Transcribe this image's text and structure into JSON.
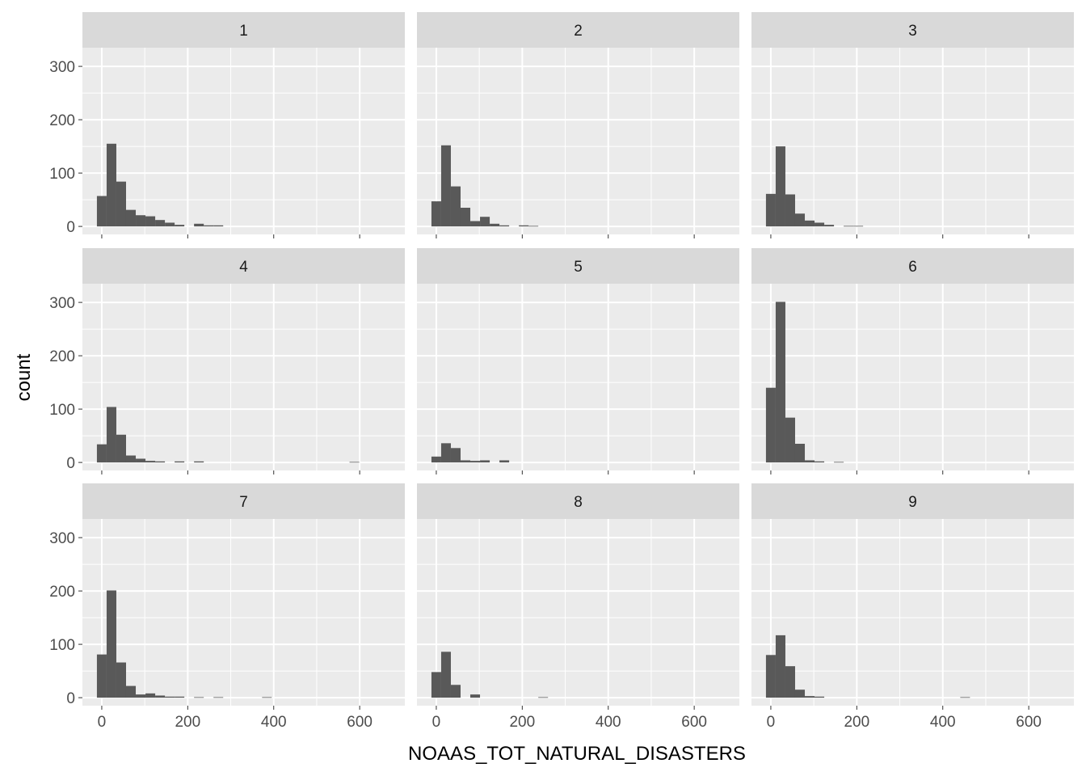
{
  "chart_data": {
    "type": "bar",
    "subtype": "faceted-histogram",
    "xlabel": "NOAAS_TOT_NATURAL_DISASTERS",
    "ylabel": "count",
    "xlim": [
      -45,
      705
    ],
    "ylim": [
      -15,
      335
    ],
    "x_ticks": [
      0,
      200,
      400,
      600
    ],
    "y_ticks": [
      0,
      100,
      200,
      300
    ],
    "bin_width": 22.6,
    "bin_start": -11.3,
    "grid": true,
    "colors": {
      "panel_bg": "#ebebeb",
      "strip_bg": "#d9d9d9",
      "grid": "#ffffff",
      "bar": "#595959",
      "axis_text": "#4d4d4d",
      "strip_text": "#1a1a1a"
    },
    "facets": [
      {
        "label": "1",
        "counts": [
          57,
          155,
          84,
          31,
          21,
          19,
          12,
          7,
          3,
          0,
          5,
          2,
          2
        ]
      },
      {
        "label": "2",
        "counts": [
          47,
          152,
          75,
          35,
          10,
          18,
          5,
          2,
          0,
          2,
          1
        ]
      },
      {
        "label": "3",
        "counts": [
          61,
          150,
          60,
          24,
          11,
          7,
          3,
          0,
          1,
          1
        ]
      },
      {
        "label": "4",
        "counts": [
          34,
          104,
          52,
          13,
          7,
          3,
          2,
          0,
          2,
          0,
          2,
          0,
          0,
          0,
          0,
          0,
          0,
          0,
          0,
          0,
          0,
          0,
          0,
          0,
          0,
          0,
          1
        ]
      },
      {
        "label": "5",
        "counts": [
          11,
          36,
          27,
          4,
          3,
          4,
          0,
          4
        ]
      },
      {
        "label": "6",
        "counts": [
          140,
          301,
          84,
          35,
          4,
          2,
          0,
          1
        ]
      },
      {
        "label": "7",
        "counts": [
          81,
          201,
          66,
          22,
          6,
          8,
          4,
          2,
          2,
          0,
          1,
          0,
          1,
          0,
          0,
          0,
          0,
          1
        ]
      },
      {
        "label": "8",
        "counts": [
          48,
          86,
          24,
          0,
          6,
          0,
          0,
          0,
          0,
          0,
          0,
          1
        ]
      },
      {
        "label": "9",
        "counts": [
          80,
          117,
          59,
          15,
          3,
          2,
          0,
          0,
          0,
          0,
          0,
          0,
          0,
          0,
          0,
          0,
          0,
          0,
          0,
          0,
          1
        ]
      }
    ]
  }
}
